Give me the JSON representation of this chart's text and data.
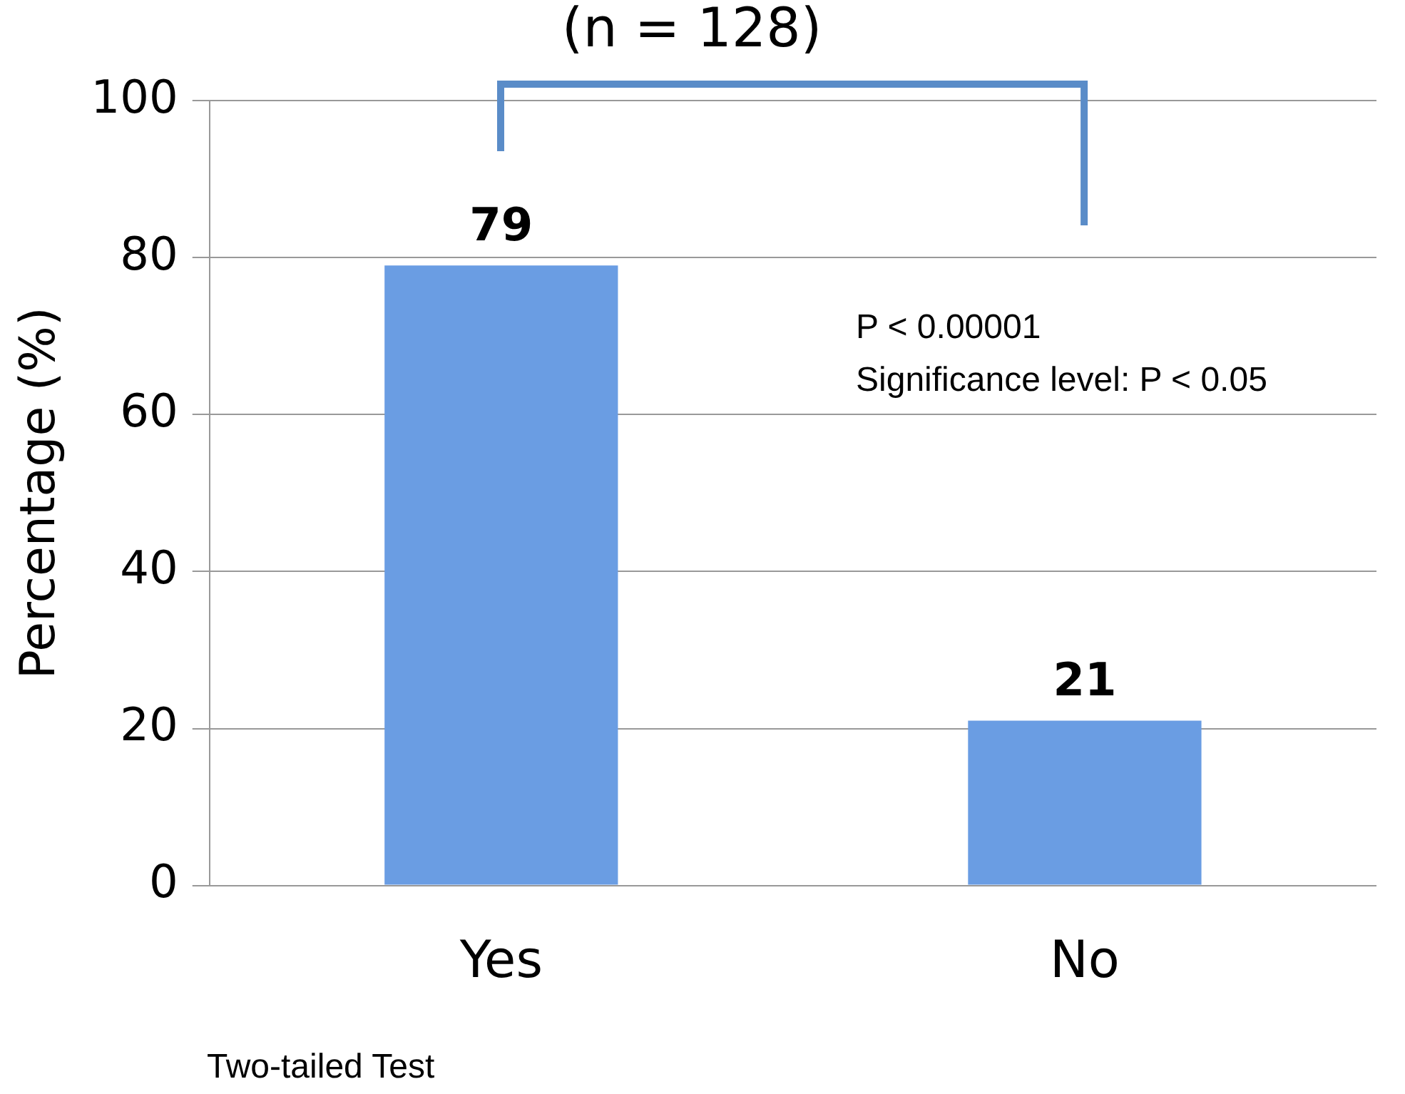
{
  "chart_data": {
    "type": "bar",
    "title": "(n = 128)",
    "ylabel": "Percentage (%)",
    "categories": [
      "Yes",
      "No"
    ],
    "values": [
      79,
      21
    ],
    "color": "#6a9de3",
    "ylim": [
      0,
      100
    ],
    "yticks": [
      0,
      20,
      40,
      60,
      80,
      100
    ],
    "grid": "y",
    "legend": false,
    "data_labels": true,
    "annotations": [
      "P < 0.00001",
      "Significance level: P < 0.05",
      "Two-tailed Test"
    ]
  }
}
